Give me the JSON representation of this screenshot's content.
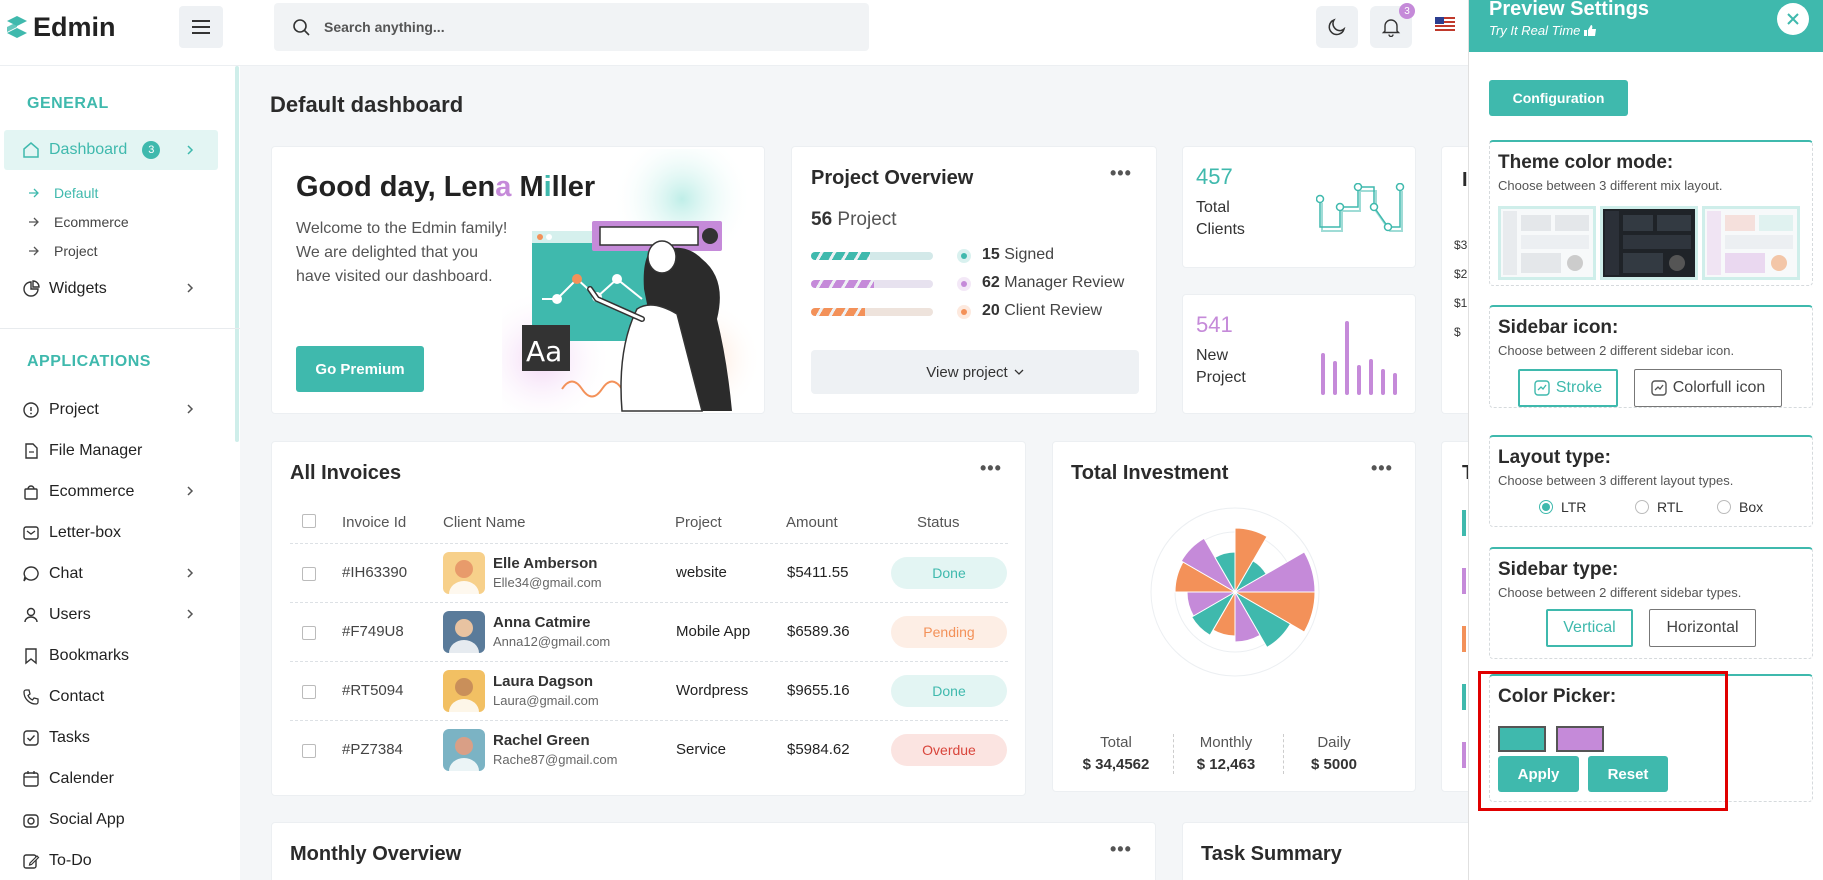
{
  "brand": {
    "name": "Edmin"
  },
  "search": {
    "placeholder": "Search anything..."
  },
  "header": {
    "notifications_count": "3"
  },
  "sidebar": {
    "general_label": "GENERAL",
    "applications_label": "APPLICATIONS",
    "dashboard": {
      "label": "Dashboard",
      "badge": "3"
    },
    "dashboard_sub": [
      "Default",
      "Ecommerce",
      "Project"
    ],
    "widgets_label": "Widgets",
    "apps": [
      {
        "label": "Project",
        "icon": "info-circle-icon"
      },
      {
        "label": "File Manager",
        "icon": "file-icon"
      },
      {
        "label": "Ecommerce",
        "icon": "shopping-bag-icon"
      },
      {
        "label": "Letter-box",
        "icon": "mail-icon"
      },
      {
        "label": "Chat",
        "icon": "chat-icon"
      },
      {
        "label": "Users",
        "icon": "user-icon"
      },
      {
        "label": "Bookmarks",
        "icon": "bookmark-icon"
      },
      {
        "label": "Contact",
        "icon": "phone-icon"
      },
      {
        "label": "Tasks",
        "icon": "checkbox-icon"
      },
      {
        "label": "Calender",
        "icon": "calendar-icon"
      },
      {
        "label": "Social App",
        "icon": "camera-icon"
      },
      {
        "label": "To-Do",
        "icon": "edit-icon"
      }
    ]
  },
  "main": {
    "title": "Default dashboard"
  },
  "welcome": {
    "greeting_1": "Good day, Len",
    "greeting_2": "a",
    "greeting_3": " M",
    "greeting_4": "i",
    "greeting_5": "ller",
    "line1": "Welcome to the Edmin family!",
    "line2": "We are delighted that you",
    "line3": "have visited our dashboard.",
    "cta": "Go Premium",
    "illus_text": "Aa"
  },
  "project_overview": {
    "title": "Project Overview",
    "count": "56",
    "count_label": "Project",
    "rows": [
      {
        "value": "15",
        "label": "Signed",
        "color": "#3fb9ad"
      },
      {
        "value": "62",
        "label": "Manager Review",
        "color": "#c58ad9"
      },
      {
        "value": "20",
        "label": "Client Review",
        "color": "#f39159"
      }
    ],
    "view_button": "View project"
  },
  "stats": [
    {
      "value": "457",
      "label1": "Total",
      "label2": "Clients"
    },
    {
      "value": "541",
      "label1": "New",
      "label2": "Project"
    }
  ],
  "partial_card_letter": "I",
  "partial_y_ticks": [
    "$3",
    "$2",
    "$1",
    "$"
  ],
  "partial_t": "T",
  "invoices": {
    "title": "All Invoices",
    "columns": [
      "Invoice Id",
      "Client Name",
      "Project",
      "Amount",
      "Status"
    ],
    "rows": [
      {
        "id": "#IH63390",
        "name": "Elle Amberson",
        "email": "Elle34@gmail.com",
        "project": "website",
        "amount": "$5411.55",
        "status": "Done"
      },
      {
        "id": "#F749U8",
        "name": "Anna Catmire",
        "email": "Anna12@gmail.com",
        "project": "Mobile App",
        "amount": "$6589.36",
        "status": "Pending"
      },
      {
        "id": "#RT5094",
        "name": "Laura Dagson",
        "email": "Laura@gmail.com",
        "project": "Wordpress",
        "amount": "$9655.16",
        "status": "Done"
      },
      {
        "id": "#PZ7384",
        "name": "Rachel Green",
        "email": "Rache87@gmail.com",
        "project": "Service",
        "amount": "$5984.62",
        "status": "Overdue"
      }
    ]
  },
  "investment": {
    "title": "Total Investment",
    "stats": [
      {
        "label": "Total",
        "value": "$ 34,4562"
      },
      {
        "label": "Monthly",
        "value": "$ 12,463"
      },
      {
        "label": "Daily",
        "value": "$ 5000"
      }
    ]
  },
  "bottom": {
    "monthly": "Monthly Overview",
    "task": "Task Summary"
  },
  "panel": {
    "title": "Preview Settings",
    "subtitle": "Try It Real Time",
    "config_button": "Configuration",
    "theme": {
      "title": "Theme color mode:",
      "desc": "Choose between 3 different mix layout."
    },
    "sidebar_icon": {
      "title": "Sidebar icon:",
      "desc": "Choose between 2 different sidebar icon.",
      "opt1": "Stroke",
      "opt2": "Colorfull icon"
    },
    "layout": {
      "title": "Layout type:",
      "desc": "Choose between 3 different layout types.",
      "opts": [
        "LTR",
        "RTL",
        "Box"
      ]
    },
    "sidebar_type": {
      "title": "Sidebar type:",
      "desc": "Choose between 2 different sidebar types.",
      "opt1": "Vertical",
      "opt2": "Horizontal"
    },
    "color_picker": {
      "title": "Color Picker:",
      "primary": "#3fb9ad",
      "secondary": "#c58ad9",
      "apply": "Apply",
      "reset": "Reset"
    }
  },
  "colors": {
    "primary": "#3fb9ad",
    "secondary": "#c58ad9",
    "warning": "#f39159",
    "highlight_box": "#e00000"
  }
}
